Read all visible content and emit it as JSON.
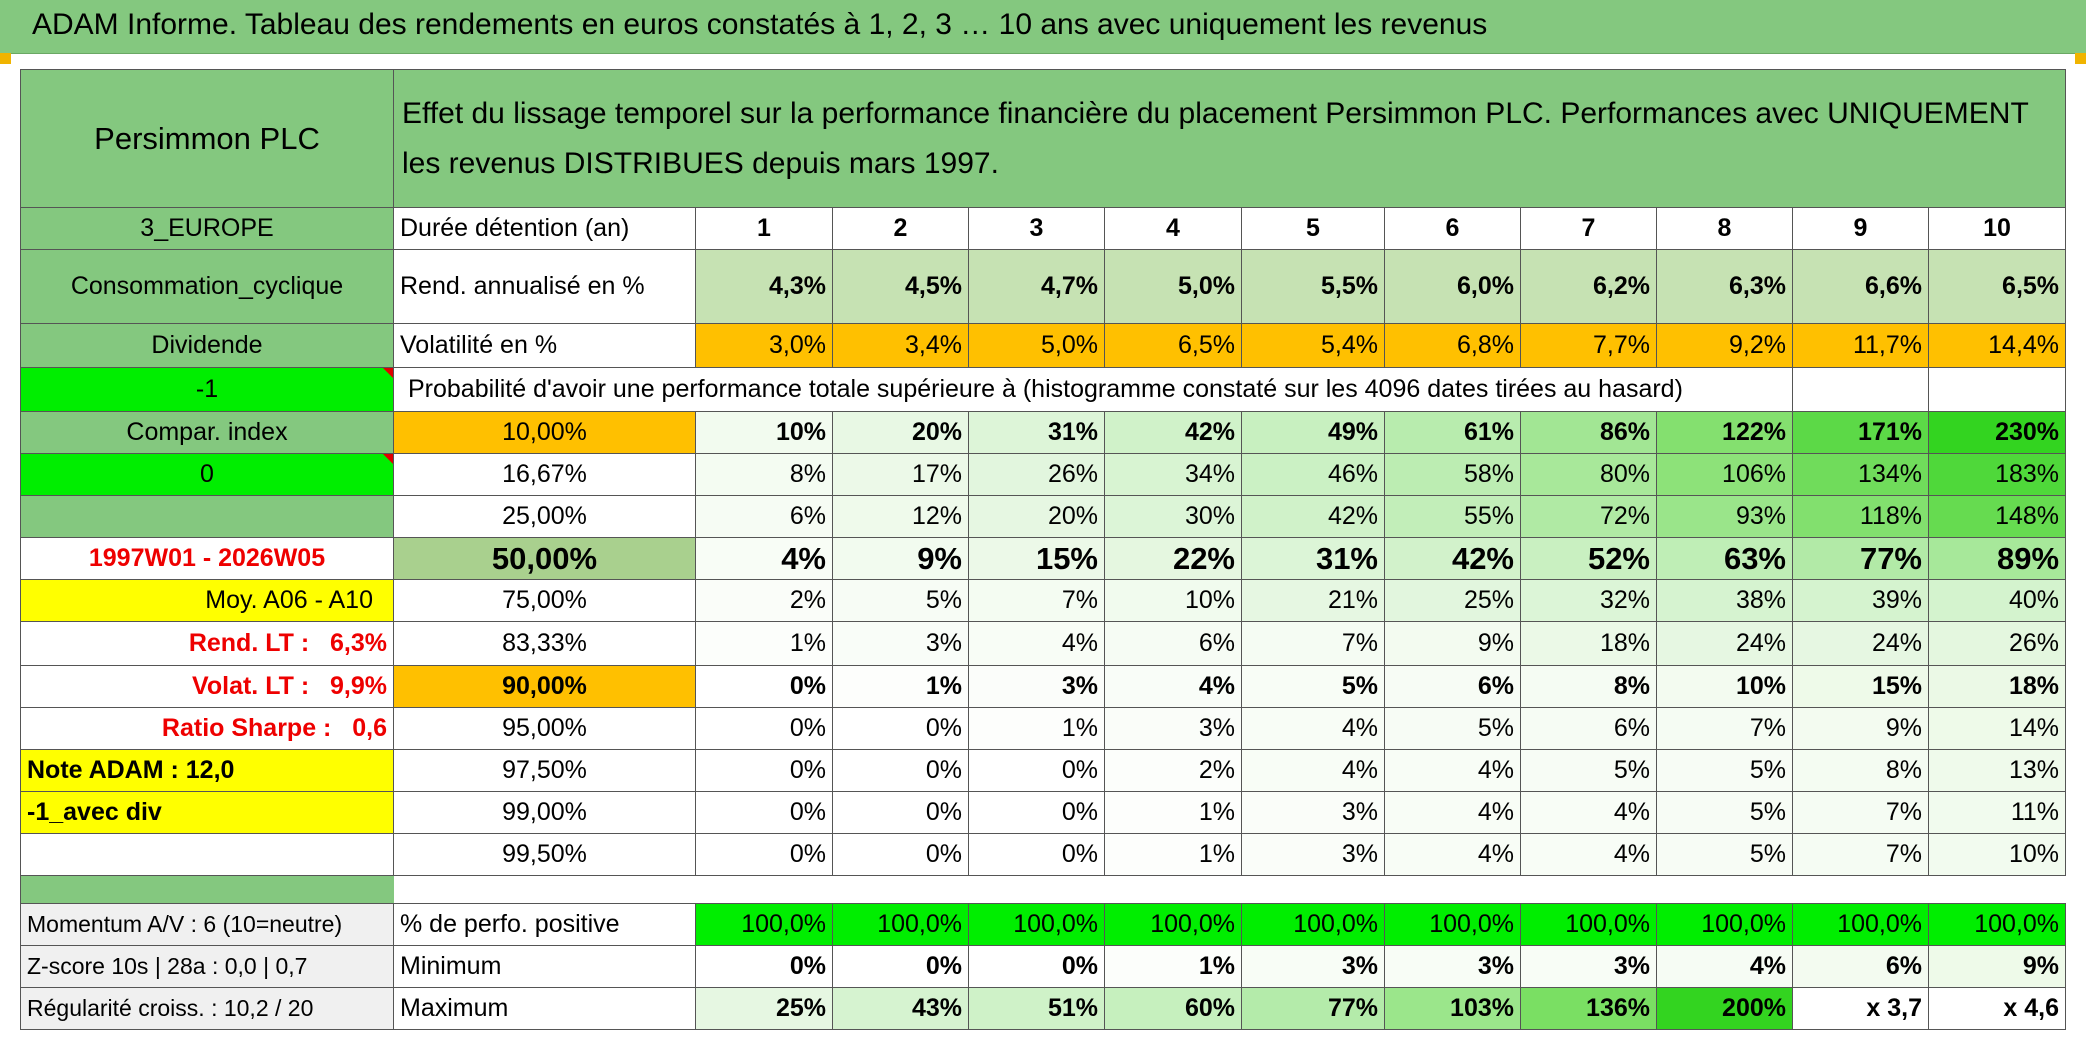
{
  "title": "ADAM Informe. Tableau des rendements en euros constatés à 1, 2, 3 … 10 ans avec uniquement les revenus",
  "left": {
    "name": "Persimmon PLC",
    "region": "3_EUROPE",
    "sector": "Consommation_cyclique",
    "type": "Dividende",
    "flag": "-1",
    "compar_label": "Compar. index",
    "compar_value": "0",
    "period": "1997W01 - 2026W05",
    "moy": "Moy. A06 - A10",
    "rend_lt_label": "Rend. LT :",
    "rend_lt_value": "6,3%",
    "volat_lt_label": "Volat. LT :",
    "volat_lt_value": "9,9%",
    "sharpe_label": "Ratio Sharpe :",
    "sharpe_value": "0,6",
    "note": "Note ADAM : 12,0",
    "variant": "-1_avec div",
    "momentum": "Momentum A/V : 6 (10=neutre)",
    "zscore": "Z-score 10s | 28a : 0,0 | 0,7",
    "regularite": "Régularité croiss. : 10,2 / 20"
  },
  "header_text": "Effet du lissage temporel sur la performance financière du placement Persimmon PLC. Performances avec UNIQUEMENT les revenus DISTRIBUES depuis mars 1997.",
  "duree_label": "Durée détention (an)",
  "years": [
    "1",
    "2",
    "3",
    "4",
    "5",
    "6",
    "7",
    "8",
    "9",
    "10"
  ],
  "rend_label": "Rend. annualisé en %",
  "rend": [
    "4,3%",
    "4,5%",
    "4,7%",
    "5,0%",
    "5,5%",
    "6,0%",
    "6,2%",
    "6,3%",
    "6,6%",
    "6,5%"
  ],
  "vol_label": "Volatilité en %",
  "vol": [
    "3,0%",
    "3,4%",
    "5,0%",
    "6,5%",
    "5,4%",
    "6,8%",
    "7,7%",
    "9,2%",
    "11,7%",
    "14,4%"
  ],
  "proba_text": "Probabilité d'avoir une performance totale supérieure à (histogramme constaté sur les 4096 dates tirées au hasard)",
  "quantiles": [
    {
      "p": "10,00%",
      "v": [
        "10%",
        "20%",
        "31%",
        "42%",
        "49%",
        "61%",
        "86%",
        "122%",
        "171%",
        "230%"
      ]
    },
    {
      "p": "16,67%",
      "v": [
        "8%",
        "17%",
        "26%",
        "34%",
        "46%",
        "58%",
        "80%",
        "106%",
        "134%",
        "183%"
      ]
    },
    {
      "p": "25,00%",
      "v": [
        "6%",
        "12%",
        "20%",
        "30%",
        "42%",
        "55%",
        "72%",
        "93%",
        "118%",
        "148%"
      ]
    },
    {
      "p": "50,00%",
      "v": [
        "4%",
        "9%",
        "15%",
        "22%",
        "31%",
        "42%",
        "52%",
        "63%",
        "77%",
        "89%"
      ]
    },
    {
      "p": "75,00%",
      "v": [
        "2%",
        "5%",
        "7%",
        "10%",
        "21%",
        "25%",
        "32%",
        "38%",
        "39%",
        "40%"
      ]
    },
    {
      "p": "83,33%",
      "v": [
        "1%",
        "3%",
        "4%",
        "6%",
        "7%",
        "9%",
        "18%",
        "24%",
        "24%",
        "26%"
      ]
    },
    {
      "p": "90,00%",
      "v": [
        "0%",
        "1%",
        "3%",
        "4%",
        "5%",
        "6%",
        "8%",
        "10%",
        "15%",
        "18%"
      ]
    },
    {
      "p": "95,00%",
      "v": [
        "0%",
        "0%",
        "1%",
        "3%",
        "4%",
        "5%",
        "6%",
        "7%",
        "9%",
        "14%"
      ]
    },
    {
      "p": "97,50%",
      "v": [
        "0%",
        "0%",
        "0%",
        "2%",
        "4%",
        "4%",
        "5%",
        "5%",
        "8%",
        "13%"
      ]
    },
    {
      "p": "99,00%",
      "v": [
        "0%",
        "0%",
        "0%",
        "1%",
        "3%",
        "4%",
        "4%",
        "5%",
        "7%",
        "11%"
      ]
    },
    {
      "p": "99,50%",
      "v": [
        "0%",
        "0%",
        "0%",
        "1%",
        "3%",
        "4%",
        "4%",
        "5%",
        "7%",
        "10%"
      ]
    }
  ],
  "pos_label": "% de perfo. positive",
  "pos": [
    "100,0%",
    "100,0%",
    "100,0%",
    "100,0%",
    "100,0%",
    "100,0%",
    "100,0%",
    "100,0%",
    "100,0%",
    "100,0%"
  ],
  "min_label": "Minimum",
  "min": [
    "0%",
    "0%",
    "0%",
    "1%",
    "3%",
    "3%",
    "3%",
    "4%",
    "6%",
    "9%"
  ],
  "max_label": "Maximum",
  "max": [
    "25%",
    "43%",
    "51%",
    "60%",
    "77%",
    "103%",
    "136%",
    "200%",
    "x 3,7",
    "x 4,6"
  ],
  "colors": {
    "header_green": "#84c87f",
    "light_green": "#c6e2b3",
    "bright_green": "#00ee00",
    "yellow": "#ffff00",
    "orange": "#ffc000",
    "red_text": "#ee0000"
  }
}
